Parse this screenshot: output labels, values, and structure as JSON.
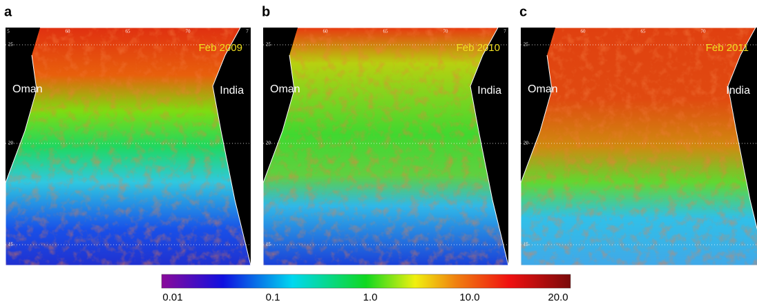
{
  "panels": [
    {
      "label": "a",
      "date": "Feb 2009",
      "lon_ticks": [
        "5",
        "60",
        "65",
        "70",
        "7"
      ],
      "lat_ticks": [
        "25",
        "20",
        "15"
      ],
      "regions": [
        "Oman",
        "India"
      ]
    },
    {
      "label": "b",
      "date": "Feb 2010",
      "lon_ticks": [
        "60",
        "65",
        "70",
        "7"
      ],
      "lat_ticks": [
        "25",
        "20",
        "15"
      ],
      "regions": [
        "Oman",
        "India"
      ]
    },
    {
      "label": "c",
      "date": "Feb 2011",
      "lon_ticks": [
        "60",
        "65",
        "70"
      ],
      "lat_ticks": [
        "25",
        "20",
        "15"
      ],
      "regions": [
        "Oman",
        "India"
      ]
    }
  ],
  "colorbar": {
    "labels": [
      "0.01",
      "0.1",
      "1.0",
      "10.0",
      "20.0"
    ]
  }
}
